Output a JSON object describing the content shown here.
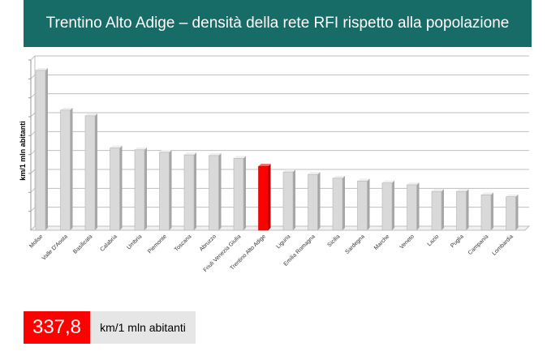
{
  "header": {
    "title": "Trentino Alto Adige – densità della rete RFI rispetto alla popolazione"
  },
  "chart_data": {
    "type": "bar",
    "title": "",
    "ylabel": "km/1 mln abitanti",
    "xlabel": "",
    "ylim": [
      0,
      900
    ],
    "grid": true,
    "highlight": "Trentino Alto Adige",
    "colors": {
      "bar": "#d9d9d9",
      "highlight": "#ff0000",
      "header": "#176c68"
    },
    "categories": [
      "Molise",
      "Valle D'Aosta",
      "Basilicata",
      "Calabria",
      "Umbria",
      "Piemonte",
      "Toscana",
      "Abruzzo",
      "Friuli Venezia Giulia",
      "Trentino Alto Adige",
      "Liguria",
      "Emilia Romagna",
      "Sicilia",
      "Sardegna",
      "Marche",
      "Veneto",
      "Lazio",
      "Puglia",
      "Campania",
      "Lombardia"
    ],
    "values": [
      845,
      635,
      605,
      435,
      425,
      412,
      398,
      395,
      380,
      338,
      308,
      295,
      275,
      260,
      250,
      240,
      205,
      205,
      187,
      177
    ]
  },
  "footer": {
    "value": "337,8",
    "unit": "km/1 mln abitanti"
  }
}
